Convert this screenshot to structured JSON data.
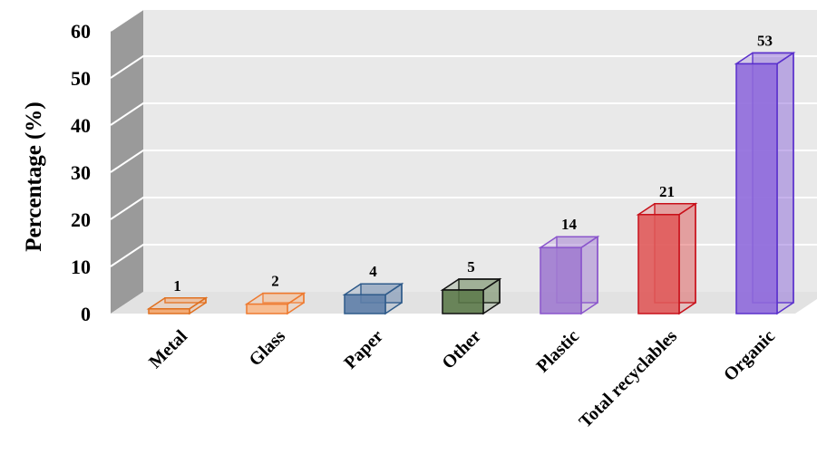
{
  "chart_data": {
    "type": "bar",
    "title": "",
    "xlabel": "",
    "ylabel": "Percentage (%)",
    "ylim": [
      0,
      60
    ],
    "yticks": [
      0,
      10,
      20,
      30,
      40,
      50,
      60
    ],
    "ytick_labels": [
      "0",
      "10",
      "20",
      "30",
      "40",
      "50",
      "60"
    ],
    "grid": true,
    "legend": "none",
    "style": "3d-column",
    "categories": [
      "Metal",
      "Glass",
      "Paper",
      "Other",
      "Plastic",
      "Total recyclables",
      "Organic"
    ],
    "values": [
      1,
      2,
      4,
      5,
      14,
      21,
      53
    ],
    "data_labels": [
      "1",
      "2",
      "4",
      "5",
      "14",
      "21",
      "53"
    ],
    "colors": {
      "fill": [
        "#F4A56A",
        "#F9B98A",
        "#5E7EA8",
        "#5C7A4A",
        "#A07BD0",
        "#E05A5A",
        "#8F6ADB"
      ],
      "stroke": [
        "#E07020",
        "#EE7A30",
        "#2E5A8A",
        "#111111",
        "#8A55CC",
        "#C8101A",
        "#5A30CC"
      ],
      "wall": "#E9E9E9",
      "side_wall": "#9A9A9A",
      "floor": "#E2E2E2",
      "gridline": "#FFFFFF"
    }
  }
}
